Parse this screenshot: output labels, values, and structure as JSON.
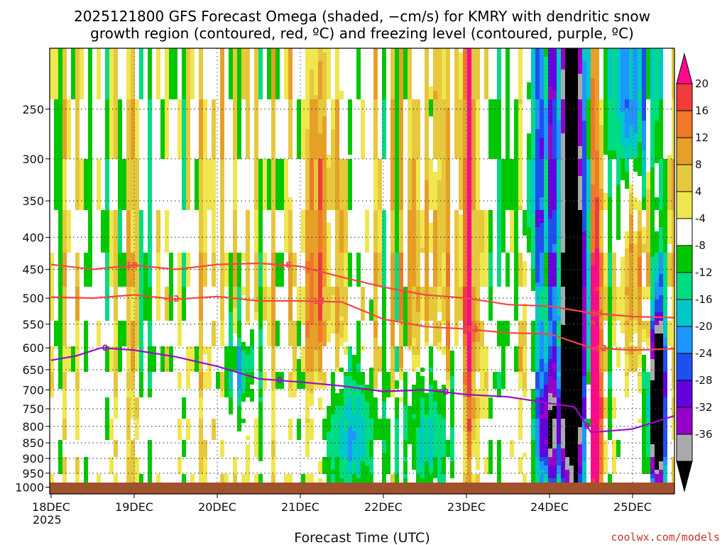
{
  "chart_data": {
    "type": "heatmap",
    "title_line1": "2025121800 GFS Forecast Omega (shaded, −cm/s) for KMRY with dendritic snow",
    "title_line2": "growth region (contoured, red, ºC) and freezing level (contoured, purple, ºC)",
    "xlabel": "Forecast Time (UTC)",
    "ylabel": "",
    "x_ticks": [
      "18DEC",
      "19DEC",
      "20DEC",
      "21DEC",
      "22DEC",
      "23DEC",
      "24DEC",
      "25DEC"
    ],
    "x_year": "2025",
    "x_range_days": [
      0,
      7.5
    ],
    "y_ticks": [
      250,
      300,
      350,
      400,
      450,
      500,
      550,
      600,
      650,
      700,
      750,
      800,
      850,
      900,
      950,
      1000
    ],
    "y_range_hpa": [
      200,
      1025
    ],
    "colorbar": {
      "ticks": [
        20,
        16,
        12,
        8,
        4,
        -4,
        -8,
        -12,
        -16,
        -20,
        -24,
        -28,
        -32,
        -36
      ],
      "colors": [
        "#ff0a8c",
        "#f03c3c",
        "#f07828",
        "#e6a028",
        "#e6c83c",
        "#f0e650",
        "#ffffff",
        "#00c800",
        "#00dc82",
        "#00c8c8",
        "#1e96ff",
        "#1e50f0",
        "#6400dc",
        "#9600c8",
        "#aaaaaa",
        "#000000"
      ]
    },
    "contours": [
      {
        "name": "-18",
        "color": "#f04848",
        "points": [
          [
            0,
            442
          ],
          [
            0.5,
            450
          ],
          [
            1,
            443
          ],
          [
            1.5,
            450
          ],
          [
            2,
            442
          ],
          [
            2.5,
            440
          ],
          [
            3,
            445
          ],
          [
            3.5,
            463
          ],
          [
            4,
            480
          ],
          [
            4.5,
            494
          ],
          [
            5,
            500
          ],
          [
            5.5,
            512
          ],
          [
            6,
            515
          ],
          [
            6.5,
            528
          ],
          [
            7,
            535
          ],
          [
            7.5,
            537
          ]
        ],
        "labels": [
          [
            0.95,
            "-18"
          ],
          [
            2.8,
            "-18"
          ],
          [
            6.55,
            "-18"
          ]
        ]
      },
      {
        "name": "-12",
        "color": "#f04848",
        "points": [
          [
            0,
            498
          ],
          [
            0.5,
            500
          ],
          [
            1,
            494
          ],
          [
            1.5,
            502
          ],
          [
            2,
            497
          ],
          [
            2.5,
            505
          ],
          [
            3,
            505
          ],
          [
            3.5,
            507
          ],
          [
            4,
            540
          ],
          [
            4.5,
            555
          ],
          [
            5,
            560
          ],
          [
            5.5,
            568
          ],
          [
            6,
            570
          ],
          [
            6.5,
            600
          ],
          [
            7,
            605
          ],
          [
            7.5,
            602
          ]
        ],
        "labels": [
          [
            1.45,
            "-12"
          ],
          [
            3.2,
            "-12"
          ],
          [
            5.05,
            "-12"
          ],
          [
            6.6,
            "-12"
          ]
        ]
      },
      {
        "name": "0",
        "color": "#9810c8",
        "points": [
          [
            0,
            628
          ],
          [
            0.3,
            618
          ],
          [
            0.6,
            600
          ],
          [
            1,
            605
          ],
          [
            1.5,
            620
          ],
          [
            2,
            642
          ],
          [
            2.5,
            672
          ],
          [
            3,
            680
          ],
          [
            3.5,
            690
          ],
          [
            4,
            704
          ],
          [
            4.5,
            700
          ],
          [
            5,
            712
          ],
          [
            5.5,
            718
          ],
          [
            6,
            735
          ],
          [
            6.3,
            745
          ],
          [
            6.5,
            818
          ],
          [
            7,
            808
          ],
          [
            7.5,
            770
          ]
        ],
        "labels": [
          [
            0.65,
            "0"
          ],
          [
            2.75,
            "0"
          ],
          [
            4.75,
            "0"
          ],
          [
            6.45,
            "0"
          ]
        ]
      }
    ],
    "omega_features": [
      {
        "day": 5.05,
        "p_top": 200,
        "p_bot": 980,
        "value": 20,
        "desc": "strong rising motion column"
      },
      {
        "day": 6.3,
        "p_top": 250,
        "p_bot": 1000,
        "value": -36,
        "desc": "strong sinking column"
      },
      {
        "day": 6.55,
        "p_top": 300,
        "p_bot": 1000,
        "value": 20,
        "desc": "strong rising motion near surface"
      },
      {
        "day": 7.3,
        "p_top": 380,
        "p_bot": 850,
        "value": -36,
        "desc": "sinking column at end"
      }
    ]
  },
  "footer": {
    "credit": "coolwx.com/models"
  }
}
